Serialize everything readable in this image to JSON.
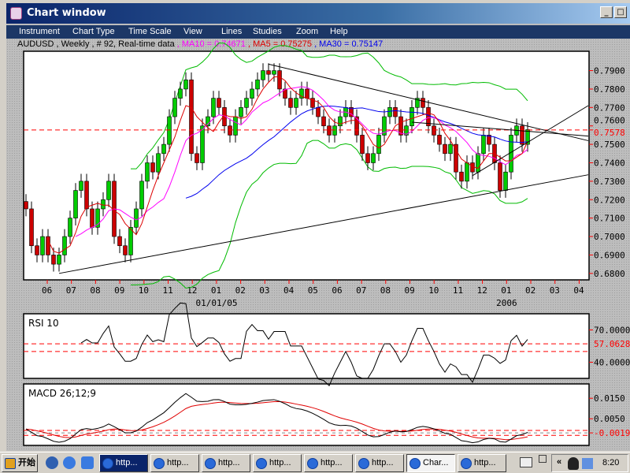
{
  "window": {
    "title": "Chart window",
    "minimize": "_",
    "maximize": "□"
  },
  "menu": [
    "Instrument",
    "Chart Type",
    "Time Scale",
    "View",
    "Lines",
    "Studies",
    "Zoom",
    "Help"
  ],
  "info": {
    "symbol": "AUDUSD , Weekly , # 92, Real-time data ",
    "ma10": ", MA10 = 0.74671",
    "ma5": " , MA5 = 0.75275",
    "ma30": " , MA30 = 0.75147"
  },
  "colors": {
    "up": "#00cc00",
    "down": "#cc0000",
    "ma10": "#ff00ff",
    "ma5": "#dd0000",
    "ma30": "#0000ee",
    "bands": "#00bb00",
    "ref": "#ff0000"
  },
  "chart_data": {
    "type": "candlestick",
    "closes": [
      0.715,
      0.695,
      0.69,
      0.7,
      0.69,
      0.685,
      0.69,
      0.7,
      0.71,
      0.725,
      0.73,
      0.715,
      0.705,
      0.715,
      0.72,
      0.73,
      0.7,
      0.695,
      0.69,
      0.705,
      0.715,
      0.73,
      0.74,
      0.735,
      0.745,
      0.75,
      0.765,
      0.775,
      0.78,
      0.785,
      0.745,
      0.74,
      0.76,
      0.765,
      0.775,
      0.77,
      0.76,
      0.755,
      0.765,
      0.77,
      0.775,
      0.78,
      0.785,
      0.79,
      0.788,
      0.79,
      0.78,
      0.775,
      0.77,
      0.775,
      0.78,
      0.775,
      0.77,
      0.765,
      0.76,
      0.755,
      0.76,
      0.765,
      0.77,
      0.765,
      0.755,
      0.745,
      0.74,
      0.745,
      0.755,
      0.765,
      0.77,
      0.765,
      0.755,
      0.76,
      0.77,
      0.775,
      0.77,
      0.76,
      0.755,
      0.75,
      0.745,
      0.75,
      0.735,
      0.73,
      0.74,
      0.735,
      0.745,
      0.755,
      0.75,
      0.74,
      0.725,
      0.735,
      0.755,
      0.76,
      0.75,
      0.758
    ],
    "x_ticks": [
      "06",
      "07",
      "08",
      "09",
      "10",
      "11",
      "12",
      "01",
      "02",
      "03",
      "04",
      "05",
      "06",
      "07",
      "08",
      "09",
      "10",
      "11",
      "12",
      "01",
      "02",
      "03",
      "04"
    ],
    "x_sublabels": {
      "01/01/05": 7,
      "2006": 19
    },
    "y_ticks": [
      "0.7900",
      "0.7800",
      "0.7700",
      "0.7600",
      "0.7500",
      "0.7400",
      "0.7300",
      "0.7200",
      "0.7100",
      "0.7000",
      "0.6900",
      "0.6800"
    ],
    "y_range": [
      0.6765,
      0.8005
    ],
    "ref_level": "0.7578",
    "trendlines": [
      [
        6,
        0.68,
        102,
        0.7335
      ],
      [
        44,
        0.7935,
        102,
        0.752
      ],
      [
        81,
        0.733,
        102,
        0.771
      ],
      [
        70,
        0.762,
        102,
        0.7545
      ]
    ],
    "rsi": {
      "label": "RSI 10",
      "ticks": [
        "70.0000",
        "40.0000"
      ],
      "ref": "57.0628",
      "ref_levels": [
        57.0628,
        50
      ],
      "range": [
        25,
        85
      ]
    },
    "macd": {
      "label": "MACD 26;12;9",
      "ticks": [
        "0.0150",
        "0.0050"
      ],
      "ref": "-0.0019",
      "range": [
        -0.008,
        0.022
      ]
    }
  },
  "taskbar": {
    "start": "开始",
    "tasks": [
      "http...",
      "http...",
      "http...",
      "http...",
      "http...",
      "http...",
      "Char...",
      "http..."
    ],
    "clock": "8:20",
    "chevron": "«"
  }
}
